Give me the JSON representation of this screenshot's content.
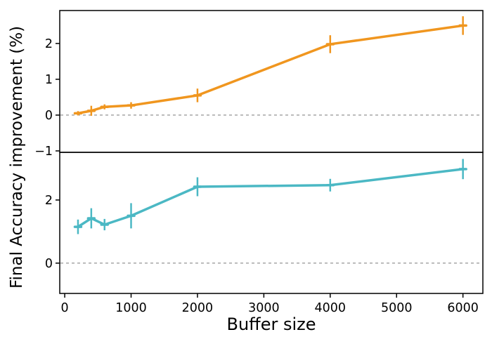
{
  "chart_data": {
    "type": "line",
    "title": "",
    "xlabel": "Buffer size",
    "ylabel": "Final Accuracy improvement (%)",
    "x": [
      200,
      400,
      600,
      1000,
      2000,
      4000,
      6000
    ],
    "xlim": [
      -75,
      6300
    ],
    "xticks": [
      0,
      1000,
      2000,
      3000,
      4000,
      5000,
      6000
    ],
    "xtick_labels": [
      "0",
      "1000",
      "2000",
      "3000",
      "4000",
      "5000",
      "6000"
    ],
    "grid": false,
    "legend": "none",
    "subplots": [
      {
        "name": "top-series",
        "color": "#f0961f",
        "values": [
          0.05,
          0.12,
          0.23,
          0.27,
          0.55,
          1.98,
          2.5
        ],
        "errors": [
          0.06,
          0.14,
          0.07,
          0.09,
          0.19,
          0.25,
          0.26
        ],
        "ylim": [
          -1.04,
          2.92
        ],
        "yticks": [
          -1,
          0,
          1,
          2
        ],
        "ytick_labels": [
          "−1",
          "0",
          "1",
          "2"
        ],
        "zero_line_dashed": true
      },
      {
        "name": "bottom-series",
        "color": "#4bb8c4",
        "values": [
          1.15,
          1.42,
          1.22,
          1.5,
          2.42,
          2.47,
          2.98
        ],
        "errors": [
          0.23,
          0.32,
          0.18,
          0.4,
          0.3,
          0.2,
          0.32
        ],
        "ylim": [
          -0.96,
          3.51
        ],
        "yticks": [
          0,
          2
        ],
        "ytick_labels": [
          "0",
          "2"
        ],
        "zero_line_dashed": true
      }
    ],
    "style": {
      "spine_color": "#000000",
      "zero_line_color": "#888888",
      "line_width": 3.5,
      "error_line_width": 2.5
    }
  }
}
